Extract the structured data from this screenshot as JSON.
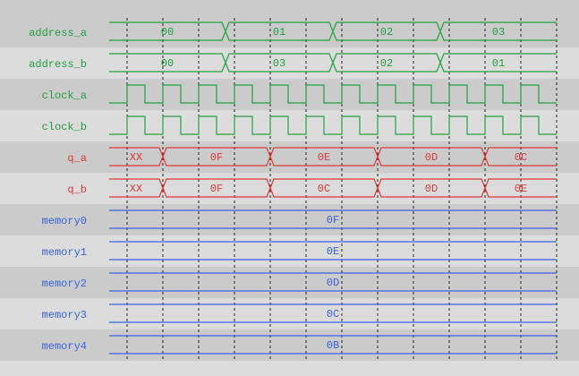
{
  "colors": {
    "green": "#22a040",
    "red": "#e03a3a",
    "blue": "#3a62e0",
    "row_dark": "#cbcbcb",
    "row_light": "#dcdcdc",
    "grid": "#222222"
  },
  "signals": [
    {
      "name": "address_a",
      "kind": "bus",
      "color": "green",
      "segments": [
        {
          "start": 0,
          "end": 3.25,
          "value": "00"
        },
        {
          "start": 3.25,
          "end": 6.25,
          "value": "01"
        },
        {
          "start": 6.25,
          "end": 9.25,
          "value": "02"
        },
        {
          "start": 9.25,
          "end": 12.5,
          "value": "03"
        }
      ]
    },
    {
      "name": "address_b",
      "kind": "bus",
      "color": "green",
      "segments": [
        {
          "start": 0,
          "end": 3.25,
          "value": "00"
        },
        {
          "start": 3.25,
          "end": 6.25,
          "value": "03"
        },
        {
          "start": 6.25,
          "end": 9.25,
          "value": "02"
        },
        {
          "start": 9.25,
          "end": 12.5,
          "value": "01"
        }
      ]
    },
    {
      "name": "clock_a",
      "kind": "clock",
      "color": "green",
      "cycles": 12
    },
    {
      "name": "clock_b",
      "kind": "clock",
      "color": "green",
      "cycles": 12
    },
    {
      "name": "q_a",
      "kind": "bus",
      "color": "red",
      "segments": [
        {
          "start": 0,
          "end": 1.5,
          "value": "XX"
        },
        {
          "start": 1.5,
          "end": 4.5,
          "value": "0F"
        },
        {
          "start": 4.5,
          "end": 7.5,
          "value": "0E"
        },
        {
          "start": 7.5,
          "end": 10.5,
          "value": "0D"
        },
        {
          "start": 10.5,
          "end": 12.5,
          "value": "0C"
        }
      ]
    },
    {
      "name": "q_b",
      "kind": "bus",
      "color": "red",
      "segments": [
        {
          "start": 0,
          "end": 1.5,
          "value": "XX"
        },
        {
          "start": 1.5,
          "end": 4.5,
          "value": "0F"
        },
        {
          "start": 4.5,
          "end": 7.5,
          "value": "0C"
        },
        {
          "start": 7.5,
          "end": 10.5,
          "value": "0D"
        },
        {
          "start": 10.5,
          "end": 12.5,
          "value": "0E"
        }
      ]
    },
    {
      "name": "memory0",
      "kind": "bus",
      "color": "blue",
      "segments": [
        {
          "start": 0,
          "end": 12.5,
          "value": "0F"
        }
      ]
    },
    {
      "name": "memory1",
      "kind": "bus",
      "color": "blue",
      "segments": [
        {
          "start": 0,
          "end": 12.5,
          "value": "0E"
        }
      ]
    },
    {
      "name": "memory2",
      "kind": "bus",
      "color": "blue",
      "segments": [
        {
          "start": 0,
          "end": 12.5,
          "value": "0D"
        }
      ]
    },
    {
      "name": "memory3",
      "kind": "bus",
      "color": "blue",
      "segments": [
        {
          "start": 0,
          "end": 12.5,
          "value": "0C"
        }
      ]
    },
    {
      "name": "memory4",
      "kind": "bus",
      "color": "blue",
      "segments": [
        {
          "start": 0,
          "end": 12.5,
          "value": "0B"
        }
      ]
    }
  ]
}
